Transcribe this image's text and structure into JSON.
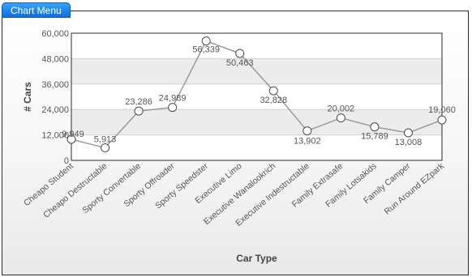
{
  "menu": {
    "label": "Chart Menu"
  },
  "chart_data": {
    "type": "line",
    "xlabel": "Car Type",
    "ylabel": "# Cars",
    "ylim": [
      0,
      60000
    ],
    "yticks": [
      "0",
      "12,000",
      "24,000",
      "36,000",
      "48,000",
      "60,000"
    ],
    "ytick_values": [
      0,
      12000,
      24000,
      36000,
      48000,
      60000
    ],
    "categories": [
      "Cheapo Student",
      "Cheapo Destructable",
      "Sporty Convertable",
      "Sporty Offroader",
      "Sporty Speedster",
      "Executive Limo",
      "Executive Wanalookrich",
      "Executive Indestructable",
      "Family Extrasafe",
      "Family Lotsakids",
      "Family Camper",
      "Run Around EZpark"
    ],
    "values": [
      9949,
      5913,
      23286,
      24989,
      56339,
      50463,
      32828,
      13902,
      20002,
      15789,
      13008,
      19060
    ],
    "data_labels": [
      "9,949",
      "5,913",
      "23,286",
      "24,989",
      "56,339",
      "50,463",
      "32,828",
      "13,902",
      "20,002",
      "15,789",
      "13,008",
      "19,060"
    ],
    "grid": true,
    "colors": {
      "line": "#9a9a9a",
      "marker_fill": "#ffffff",
      "marker_stroke": "#4a4a4a",
      "band": "#ececec"
    }
  }
}
